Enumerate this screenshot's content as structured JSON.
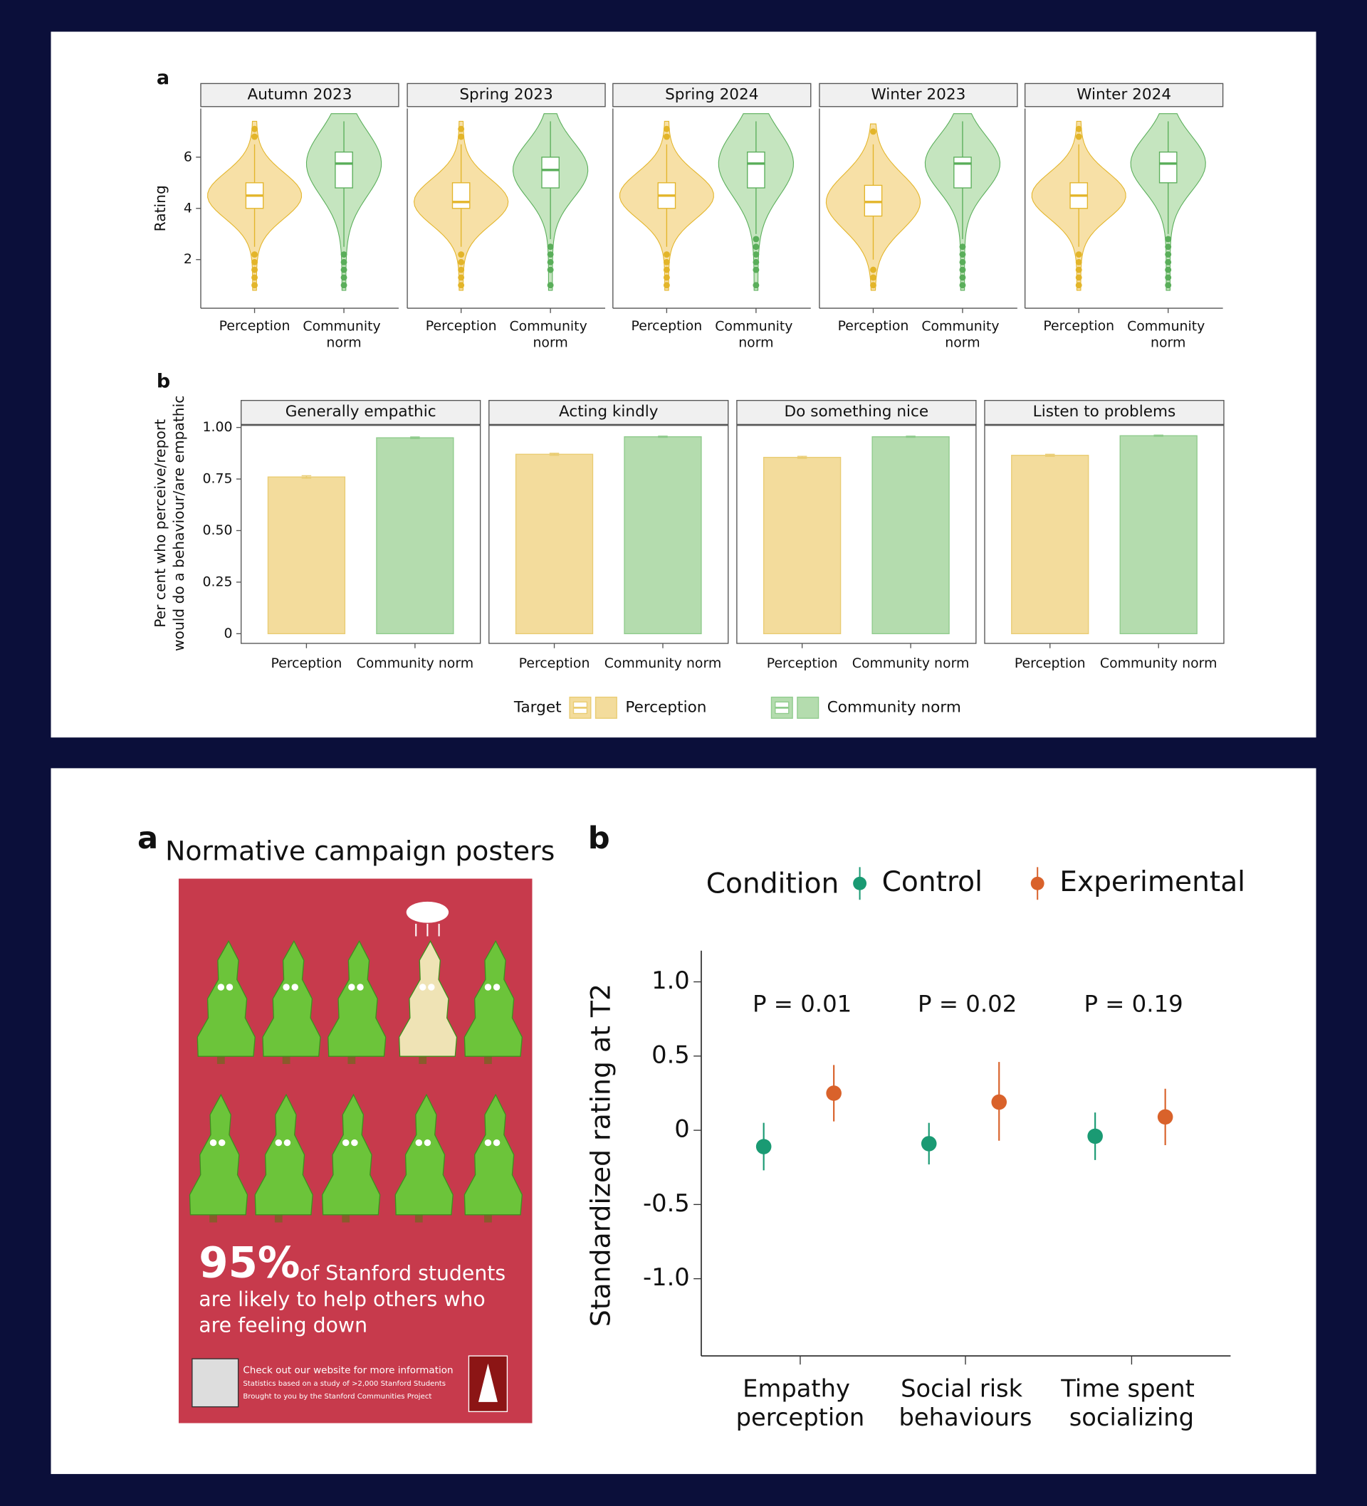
{
  "chart_data": [
    {
      "type": "violin",
      "panel_label": "a",
      "ylabel": "Rating",
      "ylim": [
        0.1,
        7.9
      ],
      "yticks": [
        2,
        4,
        6
      ],
      "categories": [
        "Perception",
        "Community norm"
      ],
      "colors": [
        "#e3b52a",
        "#5aae5a"
      ],
      "fills": [
        "#f6dd9c",
        "#bfe2b8"
      ],
      "facets": [
        {
          "title": "Autumn 2023",
          "series": [
            {
              "q1": 4.0,
              "median": 4.5,
              "q3": 5.0,
              "whisker_low": 2.5,
              "whisker_high": 6.5,
              "outliers": [
                6.8,
                7.1,
                1.0,
                1.3,
                1.6,
                1.9,
                2.2
              ]
            },
            {
              "q1": 4.8,
              "median": 5.75,
              "q3": 6.2,
              "whisker_low": 2.5,
              "whisker_high": 7.4,
              "outliers": [
                1.0,
                1.3,
                1.6,
                1.9,
                2.2
              ]
            }
          ]
        },
        {
          "title": "Spring 2023",
          "series": [
            {
              "q1": 4.0,
              "median": 4.25,
              "q3": 5.0,
              "whisker_low": 2.5,
              "whisker_high": 6.5,
              "outliers": [
                6.8,
                7.1,
                1.0,
                1.3,
                1.6,
                1.9,
                2.2
              ]
            },
            {
              "q1": 4.8,
              "median": 5.5,
              "q3": 6.0,
              "whisker_low": 2.8,
              "whisker_high": 7.4,
              "outliers": [
                1.0,
                1.6,
                1.9,
                2.2,
                2.5
              ]
            }
          ]
        },
        {
          "title": "Spring 2024",
          "series": [
            {
              "q1": 4.0,
              "median": 4.5,
              "q3": 5.0,
              "whisker_low": 2.5,
              "whisker_high": 6.5,
              "outliers": [
                6.8,
                7.1,
                1.0,
                1.3,
                1.6,
                1.9,
                2.2
              ]
            },
            {
              "q1": 4.8,
              "median": 5.75,
              "q3": 6.2,
              "whisker_low": 3.0,
              "whisker_high": 7.4,
              "outliers": [
                1.0,
                1.6,
                1.9,
                2.2,
                2.5,
                2.8
              ]
            }
          ]
        },
        {
          "title": "Winter 2023",
          "series": [
            {
              "q1": 3.7,
              "median": 4.25,
              "q3": 4.9,
              "whisker_low": 2.0,
              "whisker_high": 6.5,
              "outliers": [
                7.0,
                1.0,
                1.3,
                1.6
              ]
            },
            {
              "q1": 4.8,
              "median": 5.75,
              "q3": 6.0,
              "whisker_low": 2.8,
              "whisker_high": 7.4,
              "outliers": [
                1.0,
                1.3,
                1.6,
                1.9,
                2.2,
                2.5
              ]
            }
          ]
        },
        {
          "title": "Winter 2024",
          "series": [
            {
              "q1": 4.0,
              "median": 4.5,
              "q3": 5.0,
              "whisker_low": 2.5,
              "whisker_high": 6.5,
              "outliers": [
                6.8,
                7.1,
                1.0,
                1.3,
                1.6,
                1.9,
                2.2
              ]
            },
            {
              "q1": 5.0,
              "median": 5.75,
              "q3": 6.2,
              "whisker_low": 3.0,
              "whisker_high": 7.4,
              "outliers": [
                1.0,
                1.3,
                1.6,
                1.9,
                2.2,
                2.5,
                2.8
              ]
            }
          ]
        }
      ]
    },
    {
      "type": "bar",
      "panel_label": "b",
      "ylabel": [
        "Per cent who perceive/report",
        "would do a behaviour/are empathic"
      ],
      "ylim": [
        -0.047,
        1.01
      ],
      "yticks": [
        0,
        0.25,
        {
          "value": 0.5,
          "label": "0.50"
        },
        0.75,
        {
          "value": 1,
          "label": "1.00"
        }
      ],
      "categories": [
        "Perception",
        "Community norm"
      ],
      "colors": [
        "#e9cc72",
        "#8fcb8c"
      ],
      "fills": [
        "#f3dc9c",
        "#b4dcae"
      ],
      "facets": [
        {
          "title": "Generally empathic",
          "values": [
            0.76,
            0.95
          ],
          "errors": [
            0.006,
            0.004
          ]
        },
        {
          "title": "Acting kindly",
          "values": [
            0.87,
            0.955
          ],
          "errors": [
            0.005,
            0.003
          ]
        },
        {
          "title": "Do something nice",
          "values": [
            0.855,
            0.955
          ],
          "errors": [
            0.005,
            0.003
          ]
        },
        {
          "title": "Listen to problems",
          "values": [
            0.865,
            0.96
          ],
          "errors": [
            0.005,
            0.003
          ]
        }
      ],
      "legend_title": "Target",
      "legend": "bottom"
    },
    {
      "type": "pointrange",
      "panel_label": "b",
      "ylabel": "Standardized rating at T2",
      "ylim": [
        -1.52,
        1.21
      ],
      "yticks": [
        {
          "value": 1,
          "label": "1.0"
        },
        0.5,
        0,
        -0.5,
        {
          "value": -1,
          "label": "-1.0"
        }
      ],
      "categories": [
        "Empathy perception",
        "Social risk behaviours",
        "Time spent socializing"
      ],
      "legend_title": "Condition",
      "legend": "top",
      "series": [
        {
          "name": "Control",
          "color": "#1a9a73",
          "values": [
            -0.11,
            -0.09,
            -0.04
          ],
          "lower": [
            -0.27,
            -0.23,
            -0.2
          ],
          "upper": [
            0.05,
            0.05,
            0.12
          ]
        },
        {
          "name": "Experimental",
          "color": "#d9622b",
          "values": [
            0.25,
            0.19,
            0.09
          ],
          "lower": [
            0.06,
            -0.07,
            -0.1
          ],
          "upper": [
            0.44,
            0.46,
            0.28
          ]
        }
      ],
      "annotations": [
        "P = 0.01",
        "P = 0.02",
        "P = 0.19"
      ]
    }
  ],
  "poster_panel": {
    "panel_label": "a",
    "title": "Normative campaign posters",
    "headline": "95%",
    "lines": [
      "of Stanford students",
      "are likely to help others who",
      "are feeling down"
    ],
    "footer": [
      "Check out our website for more information",
      "Statistics based on a study of >2,000 Stanford Students",
      "Brought to you by the Stanford Communities Project"
    ]
  }
}
